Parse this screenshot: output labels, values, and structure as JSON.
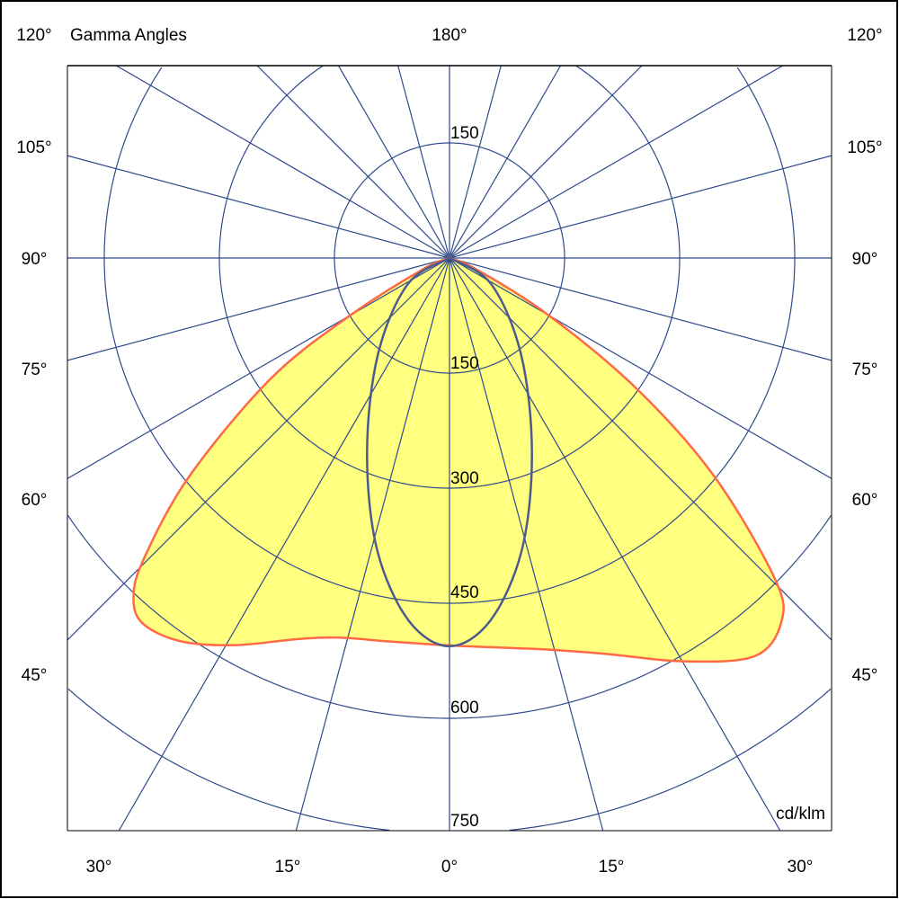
{
  "chart_data": {
    "type": "polar",
    "title": "Gamma Angles",
    "unit_label": "cd/klm",
    "top_angle_label": "180°",
    "left_angle_labels": [
      "120°",
      "105°",
      "90°",
      "75°",
      "60°",
      "45°"
    ],
    "right_angle_labels": [
      "120°",
      "105°",
      "90°",
      "75°",
      "60°",
      "45°"
    ],
    "bottom_angle_labels": [
      "30°",
      "15°",
      "0°",
      "15°",
      "30°"
    ],
    "radial_tick_labels_lower": [
      "150",
      "300",
      "450",
      "600",
      "750"
    ],
    "radial_tick_labels_upper": [
      "150"
    ],
    "radial_grid_step": 150,
    "radial_max": 750,
    "angular_grid_step_deg": 15,
    "colors": {
      "grid": "#2e4a8c",
      "c0_c180_fill": "#ffff80",
      "c0_c180_line": "#ff6a45",
      "c90_c270_line": "#4d5b8c"
    },
    "series": [
      {
        "plane": "C0-C180",
        "c180_left": [
          [
            0,
            505
          ],
          [
            9,
            506
          ],
          [
            16.5,
            516
          ],
          [
            22,
            536
          ],
          [
            29,
            577
          ],
          [
            35,
            610
          ],
          [
            40,
            622
          ],
          [
            43,
            604
          ],
          [
            45.5,
            558
          ],
          [
            50,
            443
          ],
          [
            56,
            281
          ],
          [
            60,
            149
          ],
          [
            67,
            38
          ],
          [
            90,
            0
          ]
        ],
        "c0_right": [
          [
            0,
            505
          ],
          [
            8,
            513
          ],
          [
            14,
            526
          ],
          [
            22,
            557
          ],
          [
            30,
            607
          ],
          [
            37.5,
            654
          ],
          [
            42.5,
            641
          ],
          [
            45.5,
            593
          ],
          [
            50.5,
            447
          ],
          [
            55,
            300
          ],
          [
            60,
            149
          ],
          [
            67,
            38
          ],
          [
            90,
            0
          ]
        ]
      },
      {
        "plane": "C90-C270",
        "c270_left": [
          [
            0,
            506
          ],
          [
            6.5,
            475
          ],
          [
            14,
            391
          ],
          [
            23,
            275
          ],
          [
            36.5,
            157
          ],
          [
            58,
            64
          ],
          [
            90,
            0
          ]
        ],
        "c90_right": [
          [
            0,
            506
          ],
          [
            6.5,
            475
          ],
          [
            14,
            391
          ],
          [
            23,
            275
          ],
          [
            36.5,
            157
          ],
          [
            58,
            64
          ],
          [
            90,
            0
          ]
        ]
      }
    ]
  }
}
